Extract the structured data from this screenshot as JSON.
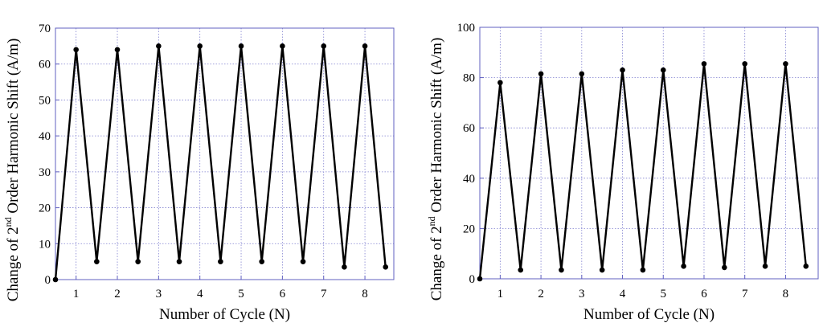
{
  "chart_data": [
    {
      "type": "line",
      "xlabel": "Number of Cycle (N)",
      "ylabel_parts": {
        "before": "Change of 2",
        "sup": "nd",
        "after": " Order Harmonic Shift (A/m)"
      },
      "xlim": [
        0.5,
        8.7
      ],
      "ylim": [
        0,
        70
      ],
      "x_ticks": [
        1,
        2,
        3,
        4,
        5,
        6,
        7,
        8
      ],
      "y_ticks": [
        0,
        10,
        20,
        30,
        40,
        50,
        60,
        70
      ],
      "grid": true,
      "series": [
        {
          "marker": "circle",
          "color": "#000000",
          "x": [
            0.5,
            1.0,
            1.5,
            2.0,
            2.5,
            3.0,
            3.5,
            4.0,
            4.5,
            5.0,
            5.5,
            6.0,
            6.5,
            7.0,
            7.5,
            8.0,
            8.5
          ],
          "y": [
            0,
            64,
            5,
            64,
            5,
            65,
            5,
            65,
            5,
            65,
            5,
            65,
            5,
            65,
            3.5,
            65,
            3.5
          ]
        }
      ]
    },
    {
      "type": "line",
      "xlabel": "Number of Cycle (N)",
      "ylabel_parts": {
        "before": "Change of 2",
        "sup": "nd",
        "after": " Order Harmonic Shift (A/m)"
      },
      "xlim": [
        0.5,
        8.8
      ],
      "ylim": [
        0,
        100
      ],
      "x_ticks": [
        1,
        2,
        3,
        4,
        5,
        6,
        7,
        8
      ],
      "y_ticks": [
        0,
        20,
        40,
        60,
        80,
        100
      ],
      "grid": true,
      "series": [
        {
          "marker": "circle",
          "color": "#000000",
          "x": [
            0.5,
            1.0,
            1.5,
            2.0,
            2.5,
            3.0,
            3.5,
            4.0,
            4.5,
            5.0,
            5.5,
            6.0,
            6.5,
            7.0,
            7.5,
            8.0,
            8.5
          ],
          "y": [
            0,
            78,
            3.5,
            81.5,
            3.5,
            81.5,
            3.5,
            83,
            3.5,
            83,
            5,
            85.5,
            4.5,
            85.5,
            5,
            85.5,
            5
          ]
        }
      ]
    }
  ],
  "colors": {
    "grid": "#8080d0",
    "frame": "#6060c0",
    "line": "#000000"
  }
}
